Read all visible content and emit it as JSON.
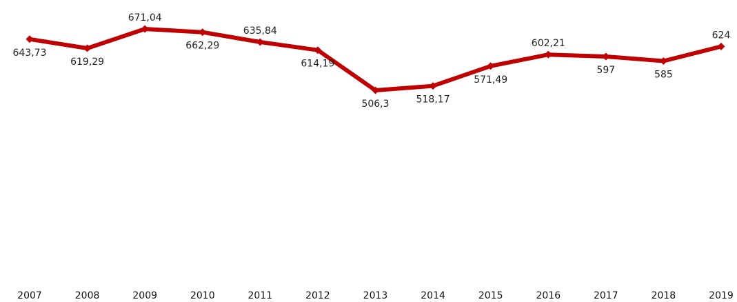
{
  "chart_data": {
    "type": "line",
    "title": "",
    "xlabel": "",
    "ylabel": "",
    "categories": [
      "2007",
      "2008",
      "2009",
      "2010",
      "2011",
      "2012",
      "2013",
      "2014",
      "2015",
      "2016",
      "2017",
      "2018",
      "2019"
    ],
    "series": [
      {
        "values": [
          643.73,
          619.29,
          671.04,
          662.29,
          635.84,
          614.19,
          506.3,
          518.17,
          571.49,
          602.21,
          597,
          585,
          624
        ],
        "labels": [
          "643,73",
          "619,29",
          "671,04",
          "662,29",
          "635,84",
          "614,19",
          "506,3",
          "518,17",
          "571,49",
          "602,21",
          "597",
          "585",
          "624"
        ],
        "color": "#c00000"
      }
    ],
    "grid": false,
    "legend": "none"
  }
}
